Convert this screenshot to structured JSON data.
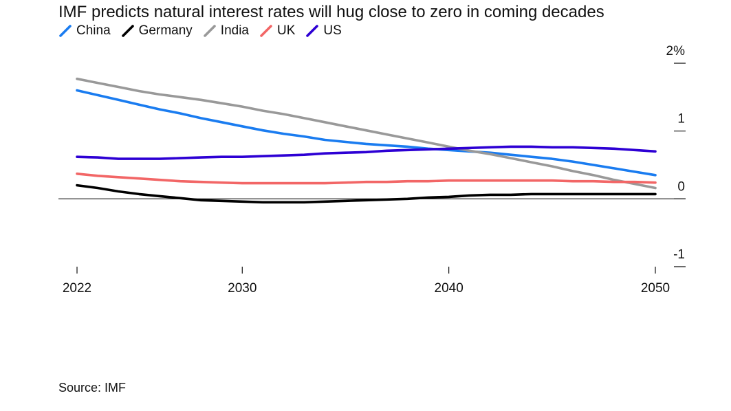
{
  "title": "IMF predicts natural interest rates will hug close to zero in coming decades",
  "source": "Source: IMF",
  "chart_data": {
    "type": "line",
    "title": "IMF predicts natural interest rates will hug close to zero in coming decades",
    "xlabel": "",
    "ylabel": "",
    "x_ticks": [
      "2022",
      "2030",
      "2040",
      "2050"
    ],
    "y_ticks": [
      {
        "value": 2,
        "label": "2%"
      },
      {
        "value": 1,
        "label": "1"
      },
      {
        "value": 0,
        "label": "0"
      },
      {
        "value": -1,
        "label": "-1"
      }
    ],
    "xlim": [
      2022,
      2050
    ],
    "ylim": [
      -1,
      2
    ],
    "grid": false,
    "legend_position": "top-left",
    "x": [
      2022,
      2023,
      2024,
      2025,
      2026,
      2027,
      2028,
      2029,
      2030,
      2031,
      2032,
      2033,
      2034,
      2035,
      2036,
      2037,
      2038,
      2039,
      2040,
      2041,
      2042,
      2043,
      2044,
      2045,
      2046,
      2047,
      2048,
      2049,
      2050
    ],
    "series": [
      {
        "name": "China",
        "color": "#1a7cf0",
        "values": [
          1.6,
          1.53,
          1.46,
          1.39,
          1.32,
          1.26,
          1.19,
          1.13,
          1.07,
          1.01,
          0.96,
          0.92,
          0.87,
          0.84,
          0.81,
          0.79,
          0.77,
          0.74,
          0.72,
          0.7,
          0.68,
          0.65,
          0.62,
          0.59,
          0.55,
          0.5,
          0.45,
          0.4,
          0.35
        ]
      },
      {
        "name": "Germany",
        "color": "#000000",
        "values": [
          0.2,
          0.16,
          0.11,
          0.07,
          0.04,
          0.01,
          -0.02,
          -0.03,
          -0.04,
          -0.05,
          -0.05,
          -0.05,
          -0.04,
          -0.03,
          -0.02,
          -0.01,
          0.0,
          0.02,
          0.03,
          0.05,
          0.06,
          0.06,
          0.07,
          0.07,
          0.07,
          0.07,
          0.07,
          0.07,
          0.07
        ]
      },
      {
        "name": "India",
        "color": "#999999",
        "values": [
          1.77,
          1.71,
          1.65,
          1.59,
          1.54,
          1.5,
          1.46,
          1.41,
          1.36,
          1.3,
          1.25,
          1.19,
          1.13,
          1.07,
          1.01,
          0.95,
          0.89,
          0.83,
          0.77,
          0.71,
          0.66,
          0.6,
          0.54,
          0.48,
          0.41,
          0.35,
          0.28,
          0.22,
          0.16
        ]
      },
      {
        "name": "UK",
        "color": "#f26666",
        "values": [
          0.37,
          0.34,
          0.32,
          0.3,
          0.28,
          0.26,
          0.25,
          0.24,
          0.23,
          0.23,
          0.23,
          0.23,
          0.23,
          0.24,
          0.25,
          0.25,
          0.26,
          0.26,
          0.27,
          0.27,
          0.27,
          0.27,
          0.27,
          0.27,
          0.26,
          0.26,
          0.25,
          0.25,
          0.24
        ]
      },
      {
        "name": "US",
        "color": "#2d00d4",
        "values": [
          0.62,
          0.61,
          0.59,
          0.59,
          0.59,
          0.6,
          0.61,
          0.62,
          0.62,
          0.63,
          0.64,
          0.65,
          0.67,
          0.68,
          0.69,
          0.71,
          0.72,
          0.73,
          0.74,
          0.75,
          0.76,
          0.77,
          0.77,
          0.76,
          0.76,
          0.75,
          0.74,
          0.72,
          0.7
        ]
      }
    ]
  }
}
